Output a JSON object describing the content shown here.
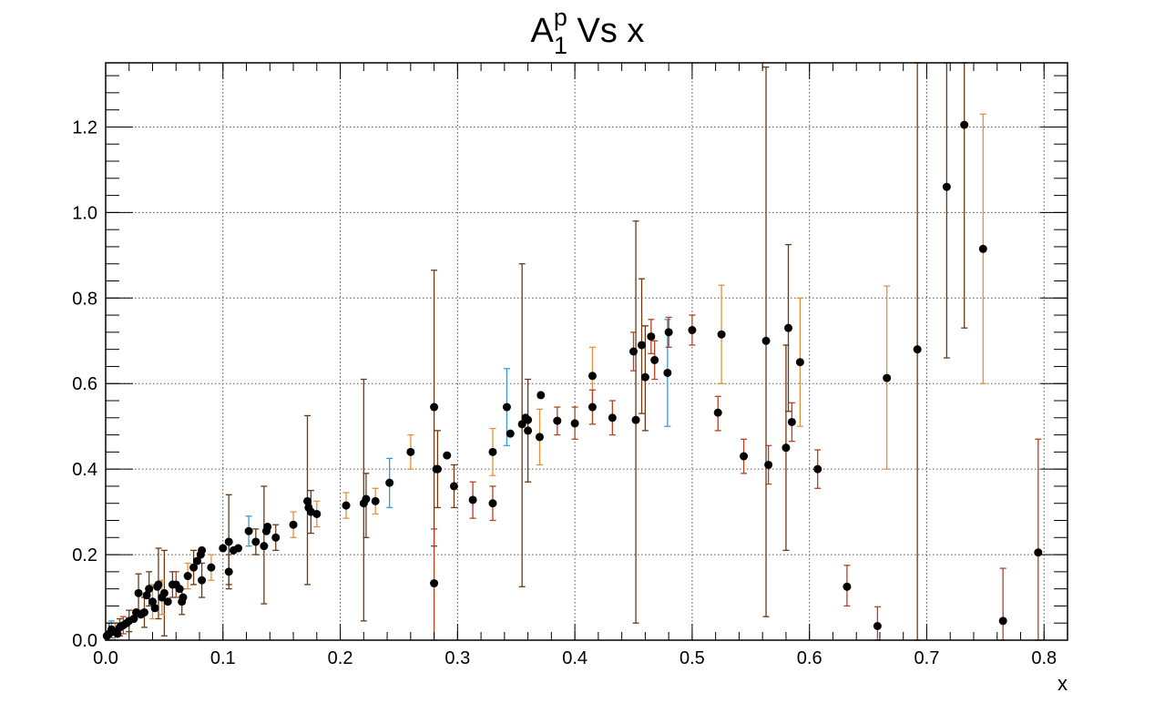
{
  "chart_data": {
    "type": "scatter",
    "title": {
      "main": "A",
      "superscript": "p",
      "subscript": "1",
      "rest": " Vs x"
    },
    "xlabel": "x",
    "ylabel": "",
    "xlim": [
      0.0,
      0.82
    ],
    "ylim": [
      0.0,
      1.35
    ],
    "x_ticks": [
      0.0,
      0.1,
      0.2,
      0.3,
      0.4,
      0.5,
      0.6,
      0.7,
      0.8
    ],
    "x_tick_labels": [
      "0.0",
      "0.1",
      "0.2",
      "0.3",
      "0.4",
      "0.5",
      "0.6",
      "0.7",
      "0.8"
    ],
    "y_ticks": [
      0.0,
      0.2,
      0.4,
      0.6,
      0.8,
      1.0,
      1.2
    ],
    "y_tick_labels": [
      "0.0",
      "0.2",
      "0.4",
      "0.6",
      "0.8",
      "1.0",
      "1.2"
    ],
    "grid": true,
    "marker_color": "#000000",
    "error_colors": {
      "brown": "#6b3a14",
      "orange": "#e0923a",
      "blue": "#3a9ad9",
      "red": "#b8401e"
    },
    "series": [
      {
        "color": "brown",
        "points": [
          {
            "x": 0.003,
            "y": 0.015,
            "lo": 0.0,
            "hi": 0.04
          },
          {
            "x": 0.012,
            "y": 0.03,
            "lo": 0.01,
            "hi": 0.05
          },
          {
            "x": 0.02,
            "y": 0.045,
            "lo": 0.02,
            "hi": 0.07
          },
          {
            "x": 0.028,
            "y": 0.11,
            "lo": 0.07,
            "hi": 0.155
          },
          {
            "x": 0.033,
            "y": 0.065,
            "lo": 0.03,
            "hi": 0.1
          },
          {
            "x": 0.037,
            "y": 0.12,
            "lo": 0.08,
            "hi": 0.16
          },
          {
            "x": 0.045,
            "y": 0.13,
            "lo": 0.05,
            "hi": 0.215
          },
          {
            "x": 0.05,
            "y": 0.11,
            "lo": 0.01,
            "hi": 0.21
          },
          {
            "x": 0.057,
            "y": 0.13,
            "lo": 0.1,
            "hi": 0.16
          },
          {
            "x": 0.065,
            "y": 0.09,
            "lo": 0.06,
            "hi": 0.12
          },
          {
            "x": 0.075,
            "y": 0.17,
            "lo": 0.13,
            "hi": 0.21
          },
          {
            "x": 0.082,
            "y": 0.14,
            "lo": 0.1,
            "hi": 0.18
          },
          {
            "x": 0.105,
            "y": 0.16,
            "lo": 0.12,
            "hi": 0.2
          },
          {
            "x": 0.105,
            "y": 0.23,
            "lo": 0.13,
            "hi": 0.34
          },
          {
            "x": 0.128,
            "y": 0.23,
            "lo": 0.2,
            "hi": 0.26
          },
          {
            "x": 0.135,
            "y": 0.22,
            "lo": 0.085,
            "hi": 0.36
          },
          {
            "x": 0.145,
            "y": 0.24,
            "lo": 0.21,
            "hi": 0.27
          },
          {
            "x": 0.172,
            "y": 0.325,
            "lo": 0.13,
            "hi": 0.525
          },
          {
            "x": 0.175,
            "y": 0.3,
            "lo": 0.25,
            "hi": 0.35
          },
          {
            "x": 0.22,
            "y": 0.32,
            "lo": 0.045,
            "hi": 0.61
          },
          {
            "x": 0.222,
            "y": 0.33,
            "lo": 0.24,
            "hi": 0.39
          },
          {
            "x": 0.28,
            "y": 0.545,
            "lo": 0.22,
            "hi": 0.865
          },
          {
            "x": 0.283,
            "y": 0.4,
            "lo": 0.31,
            "hi": 0.49
          },
          {
            "x": 0.297,
            "y": 0.36,
            "lo": 0.31,
            "hi": 0.41
          },
          {
            "x": 0.355,
            "y": 0.505,
            "lo": 0.125,
            "hi": 0.88
          },
          {
            "x": 0.36,
            "y": 0.49,
            "lo": 0.37,
            "hi": 0.61
          },
          {
            "x": 0.452,
            "y": 0.515,
            "lo": 0.04,
            "hi": 0.98
          },
          {
            "x": 0.457,
            "y": 0.69,
            "lo": 0.53,
            "hi": 0.845
          },
          {
            "x": 0.46,
            "y": 0.615,
            "lo": 0.49,
            "hi": 0.735
          },
          {
            "x": 0.563,
            "y": 0.7,
            "lo": 0.055,
            "hi": 1.34
          },
          {
            "x": 0.58,
            "y": 0.45,
            "lo": 0.21,
            "hi": 0.69
          },
          {
            "x": 0.582,
            "y": 0.73,
            "lo": 0.535,
            "hi": 0.925
          },
          {
            "x": 0.692,
            "y": 0.68,
            "lo": 0.0,
            "hi": 1.35
          },
          {
            "x": 0.717,
            "y": 1.06,
            "lo": 0.66,
            "hi": 1.35
          },
          {
            "x": 0.732,
            "y": 1.205,
            "lo": 0.73,
            "hi": 1.35
          }
        ]
      },
      {
        "color": "orange",
        "points": [
          {
            "x": 0.008,
            "y": 0.02,
            "lo": 0.0,
            "hi": 0.04
          },
          {
            "x": 0.04,
            "y": 0.09,
            "lo": 0.05,
            "hi": 0.13
          },
          {
            "x": 0.048,
            "y": 0.1,
            "lo": 0.06,
            "hi": 0.14
          },
          {
            "x": 0.07,
            "y": 0.15,
            "lo": 0.12,
            "hi": 0.18
          },
          {
            "x": 0.09,
            "y": 0.17,
            "lo": 0.14,
            "hi": 0.2
          },
          {
            "x": 0.16,
            "y": 0.27,
            "lo": 0.24,
            "hi": 0.3
          },
          {
            "x": 0.18,
            "y": 0.295,
            "lo": 0.265,
            "hi": 0.325
          },
          {
            "x": 0.205,
            "y": 0.315,
            "lo": 0.285,
            "hi": 0.345
          },
          {
            "x": 0.23,
            "y": 0.325,
            "lo": 0.295,
            "hi": 0.355
          },
          {
            "x": 0.26,
            "y": 0.44,
            "lo": 0.4,
            "hi": 0.48
          },
          {
            "x": 0.33,
            "y": 0.44,
            "lo": 0.385,
            "hi": 0.495
          },
          {
            "x": 0.37,
            "y": 0.475,
            "lo": 0.41,
            "hi": 0.54
          },
          {
            "x": 0.415,
            "y": 0.618,
            "lo": 0.55,
            "hi": 0.685
          },
          {
            "x": 0.525,
            "y": 0.715,
            "lo": 0.6,
            "hi": 0.83
          },
          {
            "x": 0.592,
            "y": 0.65,
            "lo": 0.5,
            "hi": 0.8
          },
          {
            "x": 0.666,
            "y": 0.613,
            "lo": 0.4,
            "hi": 0.828
          },
          {
            "x": 0.748,
            "y": 0.915,
            "lo": 0.6,
            "hi": 1.23
          }
        ]
      },
      {
        "color": "blue",
        "points": [
          {
            "x": 0.005,
            "y": 0.025,
            "lo": 0.005,
            "hi": 0.045
          },
          {
            "x": 0.122,
            "y": 0.255,
            "lo": 0.22,
            "hi": 0.29
          },
          {
            "x": 0.242,
            "y": 0.368,
            "lo": 0.31,
            "hi": 0.425
          },
          {
            "x": 0.342,
            "y": 0.545,
            "lo": 0.455,
            "hi": 0.635
          },
          {
            "x": 0.479,
            "y": 0.625,
            "lo": 0.5,
            "hi": 0.75
          }
        ]
      },
      {
        "color": "red",
        "points": [
          {
            "x": 0.015,
            "y": 0.035,
            "lo": 0.015,
            "hi": 0.055
          },
          {
            "x": 0.06,
            "y": 0.13,
            "lo": 0.1,
            "hi": 0.16
          },
          {
            "x": 0.28,
            "y": 0.133,
            "lo": 0.0,
            "hi": 0.26
          },
          {
            "x": 0.313,
            "y": 0.328,
            "lo": 0.285,
            "hi": 0.37
          },
          {
            "x": 0.33,
            "y": 0.32,
            "lo": 0.28,
            "hi": 0.36
          },
          {
            "x": 0.385,
            "y": 0.513,
            "lo": 0.48,
            "hi": 0.545
          },
          {
            "x": 0.4,
            "y": 0.507,
            "lo": 0.47,
            "hi": 0.545
          },
          {
            "x": 0.415,
            "y": 0.545,
            "lo": 0.505,
            "hi": 0.585
          },
          {
            "x": 0.432,
            "y": 0.52,
            "lo": 0.48,
            "hi": 0.56
          },
          {
            "x": 0.45,
            "y": 0.675,
            "lo": 0.63,
            "hi": 0.72
          },
          {
            "x": 0.465,
            "y": 0.71,
            "lo": 0.67,
            "hi": 0.75
          },
          {
            "x": 0.468,
            "y": 0.655,
            "lo": 0.61,
            "hi": 0.7
          },
          {
            "x": 0.48,
            "y": 0.72,
            "lo": 0.685,
            "hi": 0.755
          },
          {
            "x": 0.5,
            "y": 0.725,
            "lo": 0.69,
            "hi": 0.76
          },
          {
            "x": 0.522,
            "y": 0.532,
            "lo": 0.49,
            "hi": 0.57
          },
          {
            "x": 0.544,
            "y": 0.43,
            "lo": 0.39,
            "hi": 0.47
          },
          {
            "x": 0.565,
            "y": 0.41,
            "lo": 0.365,
            "hi": 0.455
          },
          {
            "x": 0.585,
            "y": 0.51,
            "lo": 0.465,
            "hi": 0.555
          },
          {
            "x": 0.607,
            "y": 0.4,
            "lo": 0.355,
            "hi": 0.445
          },
          {
            "x": 0.632,
            "y": 0.125,
            "lo": 0.08,
            "hi": 0.175
          },
          {
            "x": 0.658,
            "y": 0.033,
            "lo": 0.0,
            "hi": 0.078
          },
          {
            "x": 0.765,
            "y": 0.045,
            "lo": 0.0,
            "hi": 0.168
          },
          {
            "x": 0.795,
            "y": 0.205,
            "lo": 0.0,
            "hi": 0.47
          }
        ]
      },
      {
        "color": "plain",
        "points": [
          {
            "x": 0.001,
            "y": 0.01
          },
          {
            "x": 0.006,
            "y": 0.02
          },
          {
            "x": 0.01,
            "y": 0.015
          },
          {
            "x": 0.018,
            "y": 0.04
          },
          {
            "x": 0.024,
            "y": 0.05
          },
          {
            "x": 0.026,
            "y": 0.065
          },
          {
            "x": 0.03,
            "y": 0.06
          },
          {
            "x": 0.035,
            "y": 0.105
          },
          {
            "x": 0.042,
            "y": 0.075
          },
          {
            "x": 0.044,
            "y": 0.125
          },
          {
            "x": 0.053,
            "y": 0.09
          },
          {
            "x": 0.063,
            "y": 0.12
          },
          {
            "x": 0.066,
            "y": 0.1
          },
          {
            "x": 0.078,
            "y": 0.185
          },
          {
            "x": 0.081,
            "y": 0.2
          },
          {
            "x": 0.082,
            "y": 0.21
          },
          {
            "x": 0.1,
            "y": 0.215
          },
          {
            "x": 0.109,
            "y": 0.21
          },
          {
            "x": 0.113,
            "y": 0.215
          },
          {
            "x": 0.137,
            "y": 0.255
          },
          {
            "x": 0.138,
            "y": 0.265
          },
          {
            "x": 0.173,
            "y": 0.31
          },
          {
            "x": 0.282,
            "y": 0.4
          },
          {
            "x": 0.291,
            "y": 0.432
          },
          {
            "x": 0.345,
            "y": 0.483
          },
          {
            "x": 0.358,
            "y": 0.52
          },
          {
            "x": 0.36,
            "y": 0.515
          },
          {
            "x": 0.371,
            "y": 0.573
          }
        ]
      }
    ]
  }
}
